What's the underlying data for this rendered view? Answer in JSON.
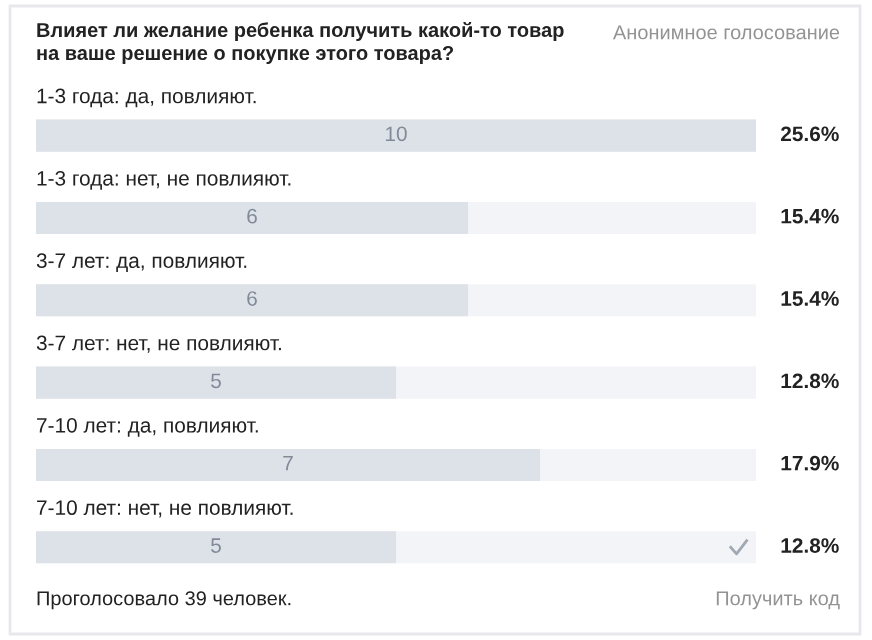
{
  "chart_data": {
    "type": "bar",
    "orientation": "horizontal",
    "title": "Влияет ли желание ребенка получить какой-то товар\nна ваше решение о покупке этого товара?",
    "categories": [
      "1-3 года: да, повлияют.",
      "1-3 года: нет, не повлияют.",
      "3-7 лет: да, повлияют.",
      "3-7 лет: нет, не повлияют.",
      "7-10 лет: да, повлияют.",
      "7-10 лет: нет, не повлияют."
    ],
    "values": [
      10,
      6,
      6,
      5,
      7,
      5
    ],
    "color": "#dde2e8",
    "xlim": [
      0,
      10
    ],
    "data_labels": true,
    "annotations": [
      "Анонимное голосование",
      "Проголосовало 39 человек.",
      "Получить код",
      "25.6%",
      "15.4%",
      "15.4%",
      "12.8%",
      "17.9%",
      "12.8%"
    ]
  }
}
